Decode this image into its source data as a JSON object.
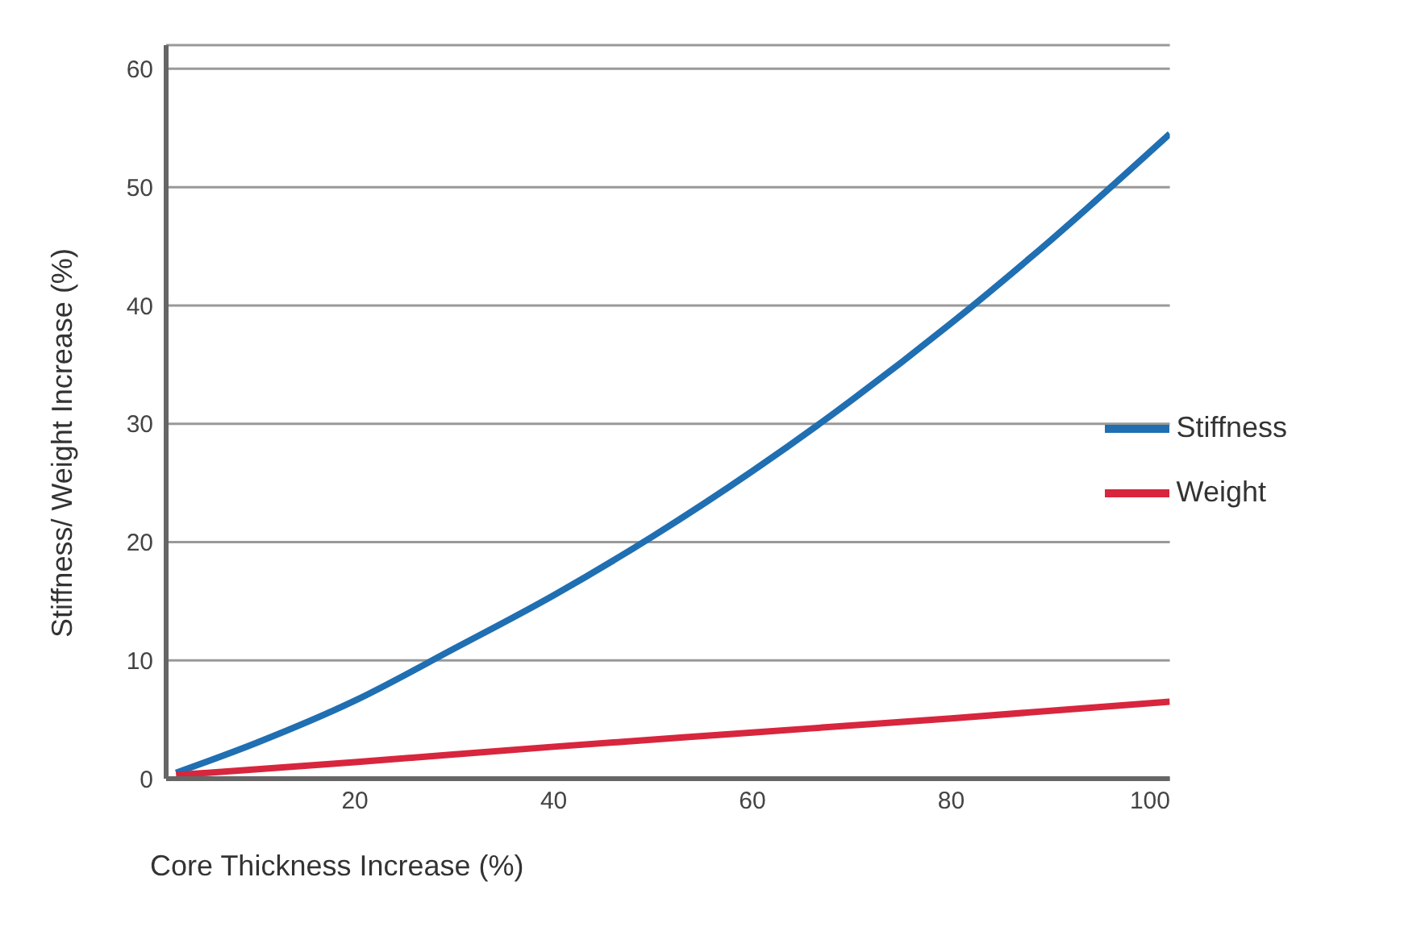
{
  "chart_data": {
    "type": "line",
    "xlabel": "Core Thickness Increase (%)",
    "ylabel": "Stiffness/ Weight Increase (%)",
    "xlim": [
      1,
      102
    ],
    "xticks": [
      20,
      40,
      60,
      80,
      100
    ],
    "ylim": [
      0,
      62
    ],
    "yticks": [
      0,
      10,
      20,
      30,
      40,
      50,
      60
    ],
    "grid": "y",
    "legend": "right",
    "marker": "none",
    "line_style": "solid",
    "series": [
      {
        "name": "Stiffness",
        "color": "#1f6fb2",
        "x": [
          2,
          10,
          20,
          30,
          40,
          50,
          60,
          70,
          80,
          90,
          102
        ],
        "values": [
          0.5,
          3,
          6.6,
          11,
          15.5,
          20.5,
          26,
          32,
          38.5,
          45.5,
          54.5
        ]
      },
      {
        "name": "Weight",
        "color": "#d7263d",
        "x": [
          2,
          20,
          40,
          60,
          80,
          102
        ],
        "values": [
          0.3,
          1.4,
          2.7,
          3.9,
          5.1,
          6.5
        ]
      }
    ]
  }
}
